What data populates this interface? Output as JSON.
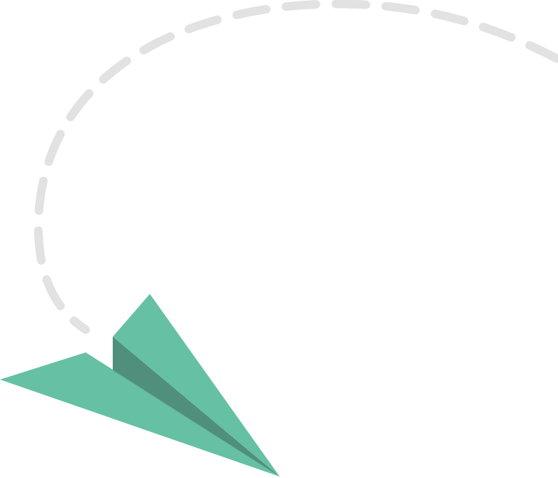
{
  "illustration": {
    "subject": "paper-plane",
    "colors": {
      "flight_path": "#e2e2e2",
      "plane_light": "#66c0a4",
      "plane_mid": "#5aa88f",
      "plane_dark": "#4f8f7b"
    }
  }
}
